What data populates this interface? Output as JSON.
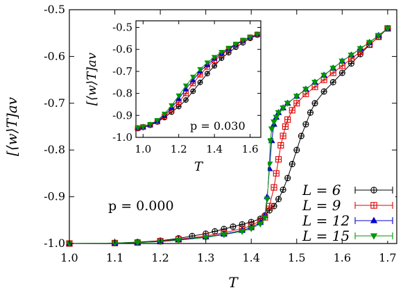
{
  "chart_data": [
    {
      "type": "line",
      "xlabel": "T",
      "ylabel": "[⟨w⟩T]av",
      "xlim": [
        1.0,
        1.72
      ],
      "ylim": [
        -1.0,
        -0.5
      ],
      "xticks": [
        "1.0",
        "1.1",
        "1.2",
        "1.3",
        "1.4",
        "1.5",
        "1.6",
        "1.7"
      ],
      "yticks": [
        "-1.0",
        "-0.9",
        "-0.8",
        "-0.7",
        "-0.6",
        "-0.5"
      ],
      "annotation": "p = 0.000",
      "legend_position": "bottom-right",
      "series": [
        {
          "name": "L = 6",
          "color": "#000000",
          "marker": "circle-plus",
          "x": [
            1.0,
            1.1,
            1.15,
            1.2,
            1.24,
            1.27,
            1.3,
            1.32,
            1.34,
            1.36,
            1.38,
            1.4,
            1.42,
            1.43,
            1.44,
            1.45,
            1.46,
            1.47,
            1.48,
            1.49,
            1.5,
            1.51,
            1.52,
            1.53,
            1.54,
            1.56,
            1.58,
            1.6,
            1.62,
            1.64,
            1.66,
            1.68,
            1.7
          ],
          "values": [
            -1.0,
            -0.999,
            -0.997,
            -0.994,
            -0.989,
            -0.984,
            -0.979,
            -0.974,
            -0.969,
            -0.964,
            -0.959,
            -0.954,
            -0.947,
            -0.94,
            -0.929,
            -0.92,
            -0.905,
            -0.885,
            -0.86,
            -0.83,
            -0.8,
            -0.77,
            -0.745,
            -0.72,
            -0.7,
            -0.675,
            -0.655,
            -0.635,
            -0.615,
            -0.595,
            -0.575,
            -0.558,
            -0.54
          ]
        },
        {
          "name": "L = 9",
          "color": "#e00000",
          "marker": "square",
          "x": [
            1.0,
            1.1,
            1.15,
            1.2,
            1.24,
            1.3,
            1.34,
            1.38,
            1.4,
            1.42,
            1.43,
            1.44,
            1.45,
            1.455,
            1.46,
            1.465,
            1.47,
            1.475,
            1.48,
            1.49,
            1.5,
            1.52,
            1.54,
            1.56,
            1.58,
            1.6,
            1.62,
            1.64,
            1.66,
            1.68,
            1.7
          ],
          "values": [
            -1.0,
            -0.999,
            -0.998,
            -0.995,
            -0.991,
            -0.984,
            -0.977,
            -0.968,
            -0.962,
            -0.951,
            -0.944,
            -0.92,
            -0.88,
            -0.85,
            -0.82,
            -0.79,
            -0.77,
            -0.75,
            -0.735,
            -0.715,
            -0.7,
            -0.68,
            -0.665,
            -0.65,
            -0.635,
            -0.62,
            -0.605,
            -0.59,
            -0.575,
            -0.558,
            -0.54
          ]
        },
        {
          "name": "L = 12",
          "color": "#0000c8",
          "marker": "triangle-up",
          "x": [
            1.0,
            1.1,
            1.15,
            1.2,
            1.24,
            1.3,
            1.34,
            1.38,
            1.4,
            1.42,
            1.43,
            1.435,
            1.44,
            1.445,
            1.45,
            1.455,
            1.46,
            1.47,
            1.48,
            1.5,
            1.52,
            1.54,
            1.56,
            1.58,
            1.6,
            1.62,
            1.64,
            1.66,
            1.68,
            1.7
          ],
          "values": [
            -1.0,
            -0.999,
            -0.998,
            -0.996,
            -0.992,
            -0.986,
            -0.98,
            -0.972,
            -0.966,
            -0.955,
            -0.94,
            -0.9,
            -0.84,
            -0.78,
            -0.745,
            -0.73,
            -0.72,
            -0.71,
            -0.7,
            -0.685,
            -0.67,
            -0.655,
            -0.64,
            -0.625,
            -0.61,
            -0.597,
            -0.583,
            -0.57,
            -0.555,
            -0.54
          ]
        },
        {
          "name": "L = 15",
          "color": "#009600",
          "marker": "triangle-down",
          "x": [
            1.0,
            1.1,
            1.15,
            1.2,
            1.24,
            1.3,
            1.34,
            1.38,
            1.4,
            1.42,
            1.43,
            1.435,
            1.44,
            1.442,
            1.445,
            1.45,
            1.455,
            1.46,
            1.47,
            1.48,
            1.5,
            1.52,
            1.54,
            1.56,
            1.58,
            1.6,
            1.62,
            1.64,
            1.66,
            1.68,
            1.7
          ],
          "values": [
            -1.0,
            -0.999,
            -0.998,
            -0.996,
            -0.993,
            -0.987,
            -0.981,
            -0.974,
            -0.968,
            -0.958,
            -0.945,
            -0.905,
            -0.83,
            -0.78,
            -0.755,
            -0.74,
            -0.73,
            -0.72,
            -0.71,
            -0.7,
            -0.685,
            -0.67,
            -0.655,
            -0.64,
            -0.625,
            -0.61,
            -0.597,
            -0.583,
            -0.57,
            -0.555,
            -0.54
          ]
        }
      ]
    },
    {
      "type": "line",
      "inset": true,
      "xlabel": "T",
      "ylabel": "[⟨w⟩T]av",
      "xlim": [
        0.96,
        1.66
      ],
      "ylim": [
        -1.0,
        -0.47
      ],
      "xticks": [
        "1.0",
        "1.2",
        "1.4",
        "1.6"
      ],
      "yticks": [
        "-1.0",
        "-0.9",
        "-0.8",
        "-0.7",
        "-0.6",
        "-0.5"
      ],
      "annotation": "p = 0.030",
      "series": [
        {
          "name": "L = 6",
          "color": "#000000",
          "marker": "circle-plus",
          "x": [
            0.97,
            1.0,
            1.04,
            1.08,
            1.12,
            1.16,
            1.2,
            1.24,
            1.28,
            1.32,
            1.36,
            1.4,
            1.44,
            1.48,
            1.52,
            1.56,
            1.6,
            1.64
          ],
          "values": [
            -0.96,
            -0.955,
            -0.945,
            -0.93,
            -0.91,
            -0.885,
            -0.86,
            -0.83,
            -0.79,
            -0.75,
            -0.71,
            -0.675,
            -0.64,
            -0.615,
            -0.59,
            -0.57,
            -0.55,
            -0.535
          ]
        },
        {
          "name": "L = 9",
          "color": "#e00000",
          "marker": "square",
          "x": [
            0.97,
            1.0,
            1.04,
            1.08,
            1.12,
            1.16,
            1.2,
            1.24,
            1.28,
            1.32,
            1.36,
            1.4,
            1.44,
            1.48,
            1.52,
            1.56,
            1.6,
            1.64
          ],
          "values": [
            -0.958,
            -0.953,
            -0.943,
            -0.928,
            -0.905,
            -0.875,
            -0.84,
            -0.8,
            -0.755,
            -0.715,
            -0.68,
            -0.65,
            -0.625,
            -0.6,
            -0.58,
            -0.56,
            -0.545,
            -0.532
          ]
        },
        {
          "name": "L = 12",
          "color": "#0000c8",
          "marker": "triangle-up",
          "x": [
            0.97,
            1.0,
            1.04,
            1.08,
            1.12,
            1.16,
            1.2,
            1.24,
            1.28,
            1.32,
            1.36,
            1.4,
            1.44,
            1.48,
            1.52,
            1.56,
            1.6,
            1.64
          ],
          "values": [
            -0.957,
            -0.952,
            -0.942,
            -0.926,
            -0.9,
            -0.865,
            -0.825,
            -0.78,
            -0.74,
            -0.7,
            -0.67,
            -0.642,
            -0.618,
            -0.597,
            -0.578,
            -0.56,
            -0.545,
            -0.532
          ]
        },
        {
          "name": "L = 15",
          "color": "#009600",
          "marker": "triangle-down",
          "x": [
            0.97,
            1.0,
            1.04,
            1.08,
            1.12,
            1.16,
            1.2,
            1.24,
            1.28,
            1.32,
            1.36,
            1.4,
            1.44,
            1.48,
            1.52,
            1.56,
            1.6,
            1.64
          ],
          "values": [
            -0.956,
            -0.951,
            -0.94,
            -0.922,
            -0.893,
            -0.855,
            -0.81,
            -0.765,
            -0.725,
            -0.69,
            -0.66,
            -0.635,
            -0.612,
            -0.593,
            -0.575,
            -0.558,
            -0.543,
            -0.531
          ]
        }
      ]
    }
  ]
}
